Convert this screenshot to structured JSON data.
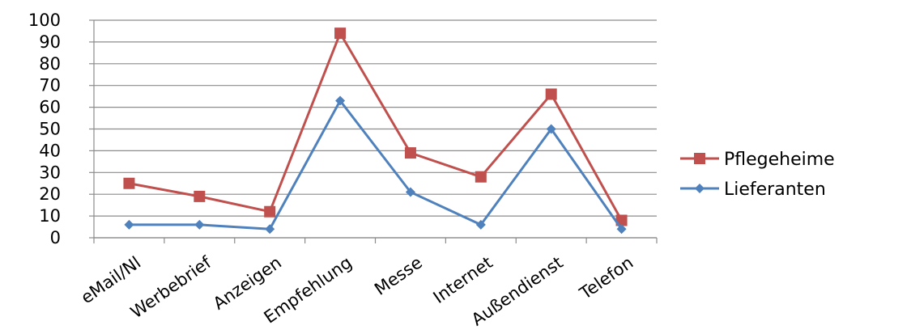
{
  "chart_data": {
    "type": "line",
    "categories": [
      "eMail/Nl",
      "Werbebrief",
      "Anzeigen",
      "Empfehlung",
      "Messe",
      "Internet",
      "Außendienst",
      "Telefon"
    ],
    "series": [
      {
        "name": "Pflegeheime",
        "values": [
          25,
          19,
          12,
          94,
          39,
          28,
          66,
          8
        ],
        "color": "#c0504d",
        "marker": "square"
      },
      {
        "name": "Lieferanten",
        "values": [
          6,
          6,
          4,
          63,
          21,
          6,
          50,
          4
        ],
        "color": "#4f81bd",
        "marker": "diamond"
      }
    ],
    "yticks": [
      "0",
      "10",
      "20",
      "30",
      "40",
      "50",
      "60",
      "70",
      "80",
      "90",
      "100"
    ],
    "ylim": [
      0,
      100
    ],
    "grid": true,
    "legend": "right"
  }
}
